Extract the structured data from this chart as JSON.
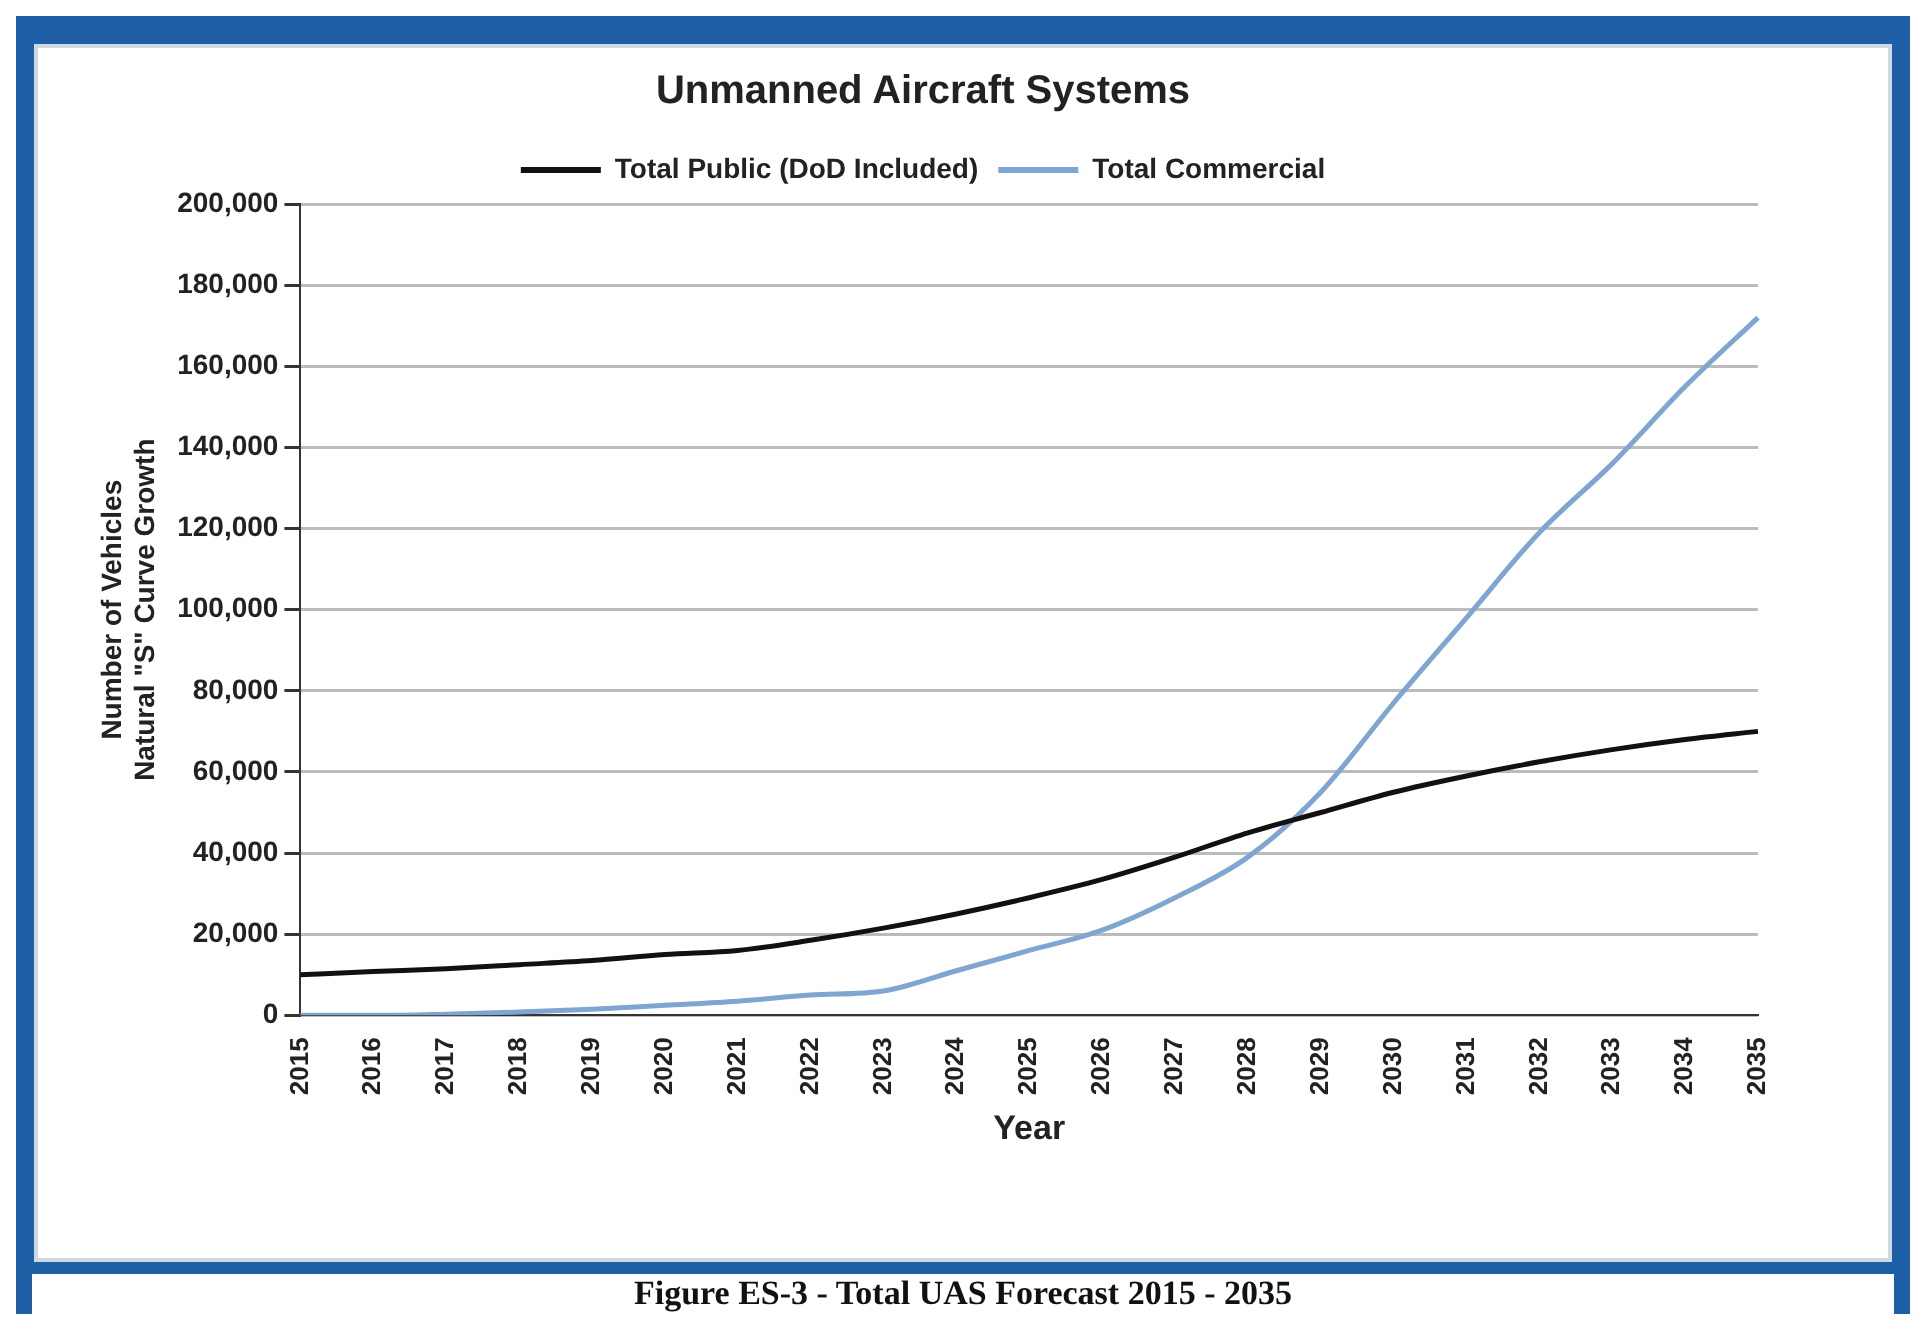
{
  "chart_data": {
    "type": "line",
    "title": "Unmanned Aircraft Systems",
    "xlabel": "Year",
    "ylabel": "Number of Vehicles\nNatural \"S\" Curve Growth",
    "categories": [
      "2015",
      "2016",
      "2017",
      "2018",
      "2019",
      "2020",
      "2021",
      "2022",
      "2023",
      "2024",
      "2025",
      "2026",
      "2027",
      "2028",
      "2029",
      "2030",
      "2031",
      "2032",
      "2033",
      "2034",
      "2035"
    ],
    "series": [
      {
        "name": "Total Public (DoD Included)",
        "color": "#111111",
        "values": [
          10000,
          10800,
          11500,
          12500,
          13500,
          15000,
          16000,
          18500,
          21500,
          25000,
          29000,
          33500,
          39000,
          45000,
          50000,
          55000,
          59000,
          62500,
          65500,
          68000,
          70000
        ]
      },
      {
        "name": "Total Commercial",
        "color": "#7ea6d0",
        "values": [
          0,
          0,
          300,
          800,
          1500,
          2500,
          3500,
          5000,
          6000,
          11000,
          16000,
          21000,
          29000,
          39000,
          55000,
          77000,
          98000,
          119000,
          136000,
          155000,
          172000
        ]
      }
    ],
    "ylim": [
      0,
      200000
    ],
    "yticks": [
      0,
      {
        "value": 20000,
        "label": "20,000"
      },
      {
        "value": 40000,
        "label": "40,000"
      },
      {
        "value": 60000,
        "label": "60,000"
      },
      {
        "value": 80000,
        "label": "80,000"
      },
      {
        "value": 100000,
        "label": "100,000"
      },
      {
        "value": 120000,
        "label": "120,000"
      },
      {
        "value": 140000,
        "label": "140,000"
      },
      {
        "value": 160000,
        "label": "160,000"
      },
      {
        "value": 180000,
        "label": "180,000"
      },
      {
        "value": 200000,
        "label": "200,000"
      }
    ],
    "grid": "y",
    "legend": "top",
    "marker": "none",
    "line_style": "solid",
    "annotations": [
      "Figure ES-3 - Total UAS Forecast 2015 - 2035"
    ]
  }
}
